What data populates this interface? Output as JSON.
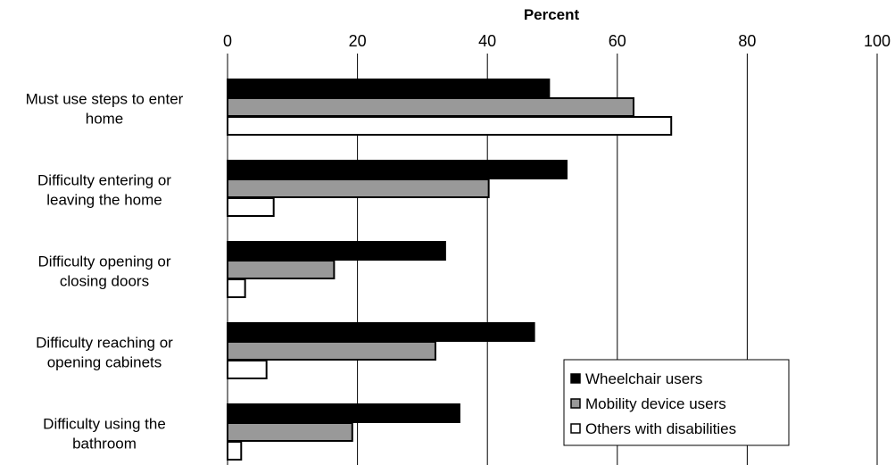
{
  "chart_data": {
    "type": "bar",
    "orientation": "horizontal",
    "xlabel": "Percent",
    "xlabel_position": "top",
    "xlim": [
      0,
      100
    ],
    "xticks": [
      "0",
      "20",
      "40",
      "60",
      "80",
      "100"
    ],
    "grid": true,
    "legend_position": "bottom-right",
    "categories": [
      [
        "Must use steps to enter",
        "home"
      ],
      [
        "Difficulty entering or",
        "leaving the home"
      ],
      [
        "Difficulty opening or",
        "closing doors"
      ],
      [
        "Difficulty reaching or",
        "opening cabinets"
      ],
      [
        "Difficulty using the",
        "bathroom"
      ]
    ],
    "series": [
      {
        "name": "Wheelchair users",
        "color": "#000000",
        "values": [
          49.5,
          52.2,
          33.5,
          47.2,
          35.7
        ]
      },
      {
        "name": "Mobility device users",
        "color": "#999999",
        "values": [
          62.5,
          40.2,
          16.4,
          32.0,
          19.2
        ]
      },
      {
        "name": "Others with disabilities",
        "color": "#ffffff",
        "values": [
          68.3,
          7.1,
          2.7,
          6.0,
          2.1
        ]
      }
    ]
  }
}
